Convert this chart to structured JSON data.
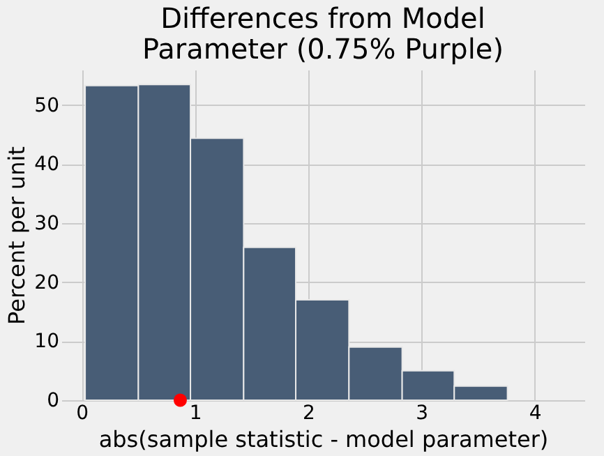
{
  "chart_data": {
    "type": "histogram",
    "title": [
      "Differences from Model",
      "Parameter (0.75% Purple)"
    ],
    "xlabel": "abs(sample statistic - model parameter)",
    "ylabel": "Percent per unit",
    "bins": [
      0.03,
      0.5,
      0.96,
      1.43,
      1.89,
      2.36,
      2.83,
      3.29,
      3.76
    ],
    "values": [
      53.3,
      53.5,
      44.4,
      25.9,
      17.0,
      9.0,
      5.0,
      2.4
    ],
    "color": "#485d76",
    "series": [
      {
        "type": "scatter",
        "x": [
          0.87
        ],
        "values": [
          0
        ],
        "color": "#ff0000"
      }
    ],
    "xlim": [
      -0.18,
      4.44
    ],
    "xticks": [
      0,
      1,
      2,
      3,
      4
    ],
    "ylim": [
      0,
      56
    ],
    "yticks": [
      0,
      10,
      20,
      30,
      40,
      50
    ],
    "grid": true
  }
}
